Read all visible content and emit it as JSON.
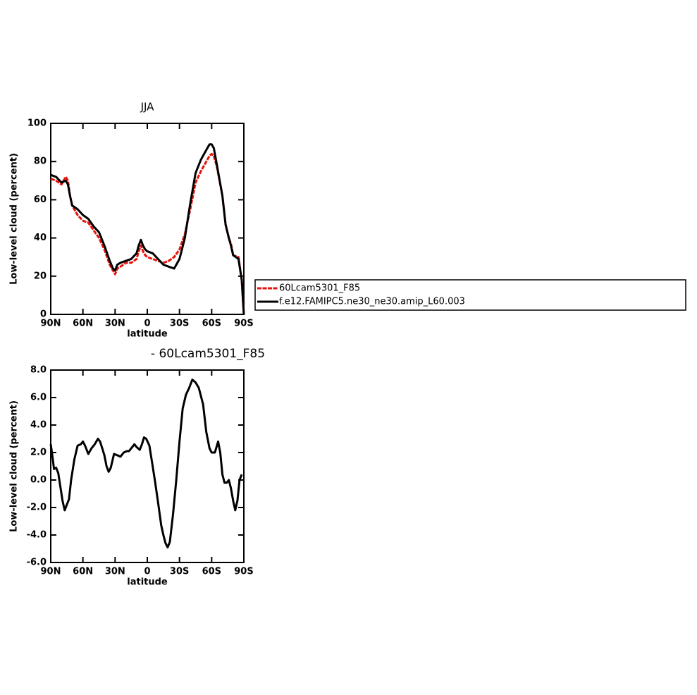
{
  "chart_data": [
    {
      "type": "line",
      "title": "JJA",
      "x_label": "latitude",
      "y_label": "Low-level cloud (percent)",
      "x": [
        90,
        85,
        80,
        76,
        74,
        72,
        70,
        65,
        60,
        55,
        50,
        45,
        40,
        35,
        32,
        30,
        28,
        25,
        20,
        15,
        10,
        8,
        6,
        4,
        2,
        0,
        -5,
        -10,
        -15,
        -20,
        -25,
        -30,
        -35,
        -40,
        -45,
        -50,
        -55,
        -58,
        -60,
        -62,
        -65,
        -70,
        -73,
        -76,
        -78,
        -80,
        -85,
        -88,
        -90
      ],
      "series": [
        {
          "name": "60Lcam5301_F85",
          "color": "#e8120c",
          "dash": "dashed",
          "values": [
            71,
            70,
            68,
            72,
            70,
            62,
            57,
            52,
            49,
            48,
            44,
            40,
            34,
            26,
            23,
            21,
            24,
            25,
            27,
            27,
            29,
            33,
            36,
            33,
            31,
            30,
            29,
            28,
            27,
            28,
            30,
            34,
            42,
            55,
            69,
            75,
            80,
            83,
            84,
            83,
            77,
            62,
            47,
            40,
            37,
            31,
            30,
            18,
            0
          ]
        },
        {
          "name": "f.e12.FAMIPC5.ne30_ne30.amip_L60.003",
          "color": "#000000",
          "dash": "solid",
          "values": [
            73,
            72,
            69,
            70,
            68,
            62,
            57,
            55,
            52,
            50,
            46,
            43,
            36,
            28,
            24,
            23,
            26,
            27,
            28,
            29,
            32,
            36,
            39,
            36,
            34,
            33,
            32,
            29,
            26,
            25,
            24,
            29,
            40,
            58,
            74,
            81,
            86,
            89,
            89,
            87,
            78,
            62,
            47,
            40,
            36,
            31,
            29,
            18,
            0
          ]
        }
      ],
      "xlim": [
        90,
        -90
      ],
      "xticks": [
        {
          "value": 90,
          "label": "90N"
        },
        {
          "value": 60,
          "label": "60N"
        },
        {
          "value": 30,
          "label": "30N"
        },
        0,
        {
          "value": -30,
          "label": "30S"
        },
        {
          "value": -60,
          "label": "60S"
        },
        {
          "value": -90,
          "label": "90S"
        }
      ],
      "ylim": [
        0,
        100
      ],
      "yticks": [
        0,
        20,
        40,
        60,
        80,
        100
      ],
      "legend": "right"
    },
    {
      "type": "line",
      "title": "- 60Lcam5301_F85",
      "x_label": "latitude",
      "y_label": "Low-level cloud (percent)",
      "x": [
        90,
        88,
        87,
        85,
        83,
        81,
        79,
        77,
        75,
        73,
        71,
        68,
        65,
        62,
        60,
        58,
        55,
        52,
        49,
        46,
        44,
        42,
        40,
        38,
        36,
        34,
        31,
        28,
        25,
        22,
        19,
        17,
        15,
        12,
        10,
        7,
        5,
        3,
        1,
        -2,
        -4,
        -7,
        -10,
        -13,
        -15,
        -17,
        -19,
        -21,
        -24,
        -27,
        -30,
        -33,
        -36,
        -39,
        -42,
        -45,
        -48,
        -52,
        -55,
        -58,
        -60,
        -63,
        -66,
        -68,
        -70,
        -72,
        -74,
        -76,
        -78,
        -80,
        -82,
        -84,
        -86,
        -88
      ],
      "series": [
        {
          "color": "#000000",
          "dash": "solid",
          "values": [
            2.6,
            1.5,
            0.8,
            0.9,
            0.5,
            -0.5,
            -1.5,
            -2.2,
            -1.8,
            -1.4,
            0,
            1.5,
            2.5,
            2.6,
            2.8,
            2.5,
            1.9,
            2.3,
            2.6,
            3.0,
            2.8,
            2.3,
            1.8,
            1.0,
            0.6,
            0.9,
            1.9,
            1.8,
            1.7,
            2.0,
            2.1,
            2.1,
            2.3,
            2.6,
            2.4,
            2.2,
            2.6,
            3.1,
            3.0,
            2.5,
            1.5,
            0,
            -1.6,
            -3.3,
            -4.0,
            -4.6,
            -4.9,
            -4.5,
            -2.5,
            0,
            2.8,
            5.2,
            6.2,
            6.7,
            7.3,
            7.1,
            6.7,
            5.5,
            3.5,
            2.3,
            2.0,
            2.0,
            2.8,
            2.0,
            0.4,
            -0.2,
            -0.2,
            0.0,
            -0.6,
            -1.5,
            -2.2,
            -1.5,
            0.0,
            0.4
          ]
        }
      ],
      "xlim": [
        90,
        -90
      ],
      "xticks": [
        {
          "value": 90,
          "label": "90N"
        },
        {
          "value": 60,
          "label": "60N"
        },
        {
          "value": 30,
          "label": "30N"
        },
        0,
        {
          "value": -30,
          "label": "30S"
        },
        {
          "value": -60,
          "label": "60S"
        },
        {
          "value": -90,
          "label": "90S"
        }
      ],
      "ylim": [
        -6,
        8
      ],
      "yticks": [
        {
          "value": -6,
          "label": "-6.0"
        },
        {
          "value": -4,
          "label": "-4.0"
        },
        {
          "value": -2,
          "label": "-2.0"
        },
        {
          "value": 0,
          "label": "0.0"
        },
        {
          "value": 2,
          "label": "2.0"
        },
        {
          "value": 4,
          "label": "4.0"
        },
        {
          "value": 6,
          "label": "6.0"
        },
        {
          "value": 8,
          "label": "8.0"
        }
      ]
    }
  ]
}
